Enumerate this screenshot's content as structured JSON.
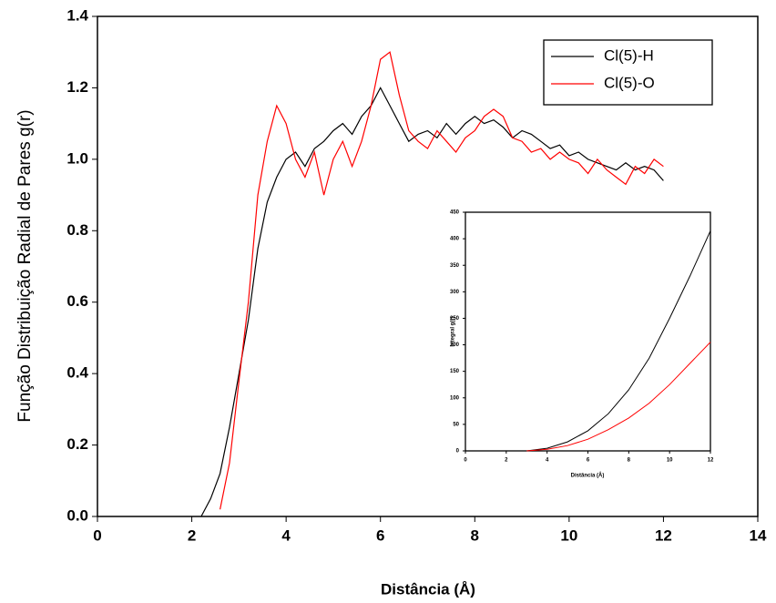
{
  "chart_data": [
    {
      "type": "line",
      "x_label": "Distância (Å)",
      "y_label": "Função Distribuição Radial de Pares g(r)",
      "x": [
        2.2,
        2.4,
        2.6,
        2.8,
        3.0,
        3.2,
        3.4,
        3.6,
        3.8,
        4.0,
        4.2,
        4.4,
        4.6,
        4.8,
        5.0,
        5.2,
        5.4,
        5.6,
        5.8,
        6.0,
        6.2,
        6.4,
        6.6,
        6.8,
        7.0,
        7.2,
        7.4,
        7.6,
        7.8,
        8.0,
        8.2,
        8.4,
        8.6,
        8.8,
        9.0,
        9.2,
        9.4,
        9.6,
        9.8,
        10.0,
        10.2,
        10.4,
        10.6,
        10.8,
        11.0,
        11.2,
        11.4,
        11.6,
        11.8,
        12.0
      ],
      "series": [
        {
          "name": "Cl(5)-H",
          "color": "#000000",
          "values": [
            0.0,
            0.05,
            0.12,
            0.25,
            0.4,
            0.55,
            0.75,
            0.88,
            0.95,
            1.0,
            1.02,
            0.98,
            1.03,
            1.05,
            1.08,
            1.1,
            1.07,
            1.12,
            1.15,
            1.2,
            1.15,
            1.1,
            1.05,
            1.07,
            1.08,
            1.06,
            1.1,
            1.07,
            1.1,
            1.12,
            1.1,
            1.11,
            1.09,
            1.06,
            1.08,
            1.07,
            1.05,
            1.03,
            1.04,
            1.01,
            1.02,
            1.0,
            0.99,
            0.98,
            0.97,
            0.99,
            0.97,
            0.98,
            0.97,
            0.94
          ]
        },
        {
          "name": "Cl(5)-O",
          "color": "#ff0000",
          "values": [
            null,
            null,
            0.02,
            0.15,
            0.38,
            0.6,
            0.9,
            1.05,
            1.15,
            1.1,
            1.0,
            0.95,
            1.02,
            0.9,
            1.0,
            1.05,
            0.98,
            1.05,
            1.15,
            1.28,
            1.3,
            1.18,
            1.08,
            1.05,
            1.03,
            1.08,
            1.05,
            1.02,
            1.06,
            1.08,
            1.12,
            1.14,
            1.12,
            1.06,
            1.05,
            1.02,
            1.03,
            1.0,
            1.02,
            1.0,
            0.99,
            0.96,
            1.0,
            0.97,
            0.95,
            0.93,
            0.98,
            0.96,
            1.0,
            0.98
          ]
        }
      ],
      "xlim": [
        0,
        14
      ],
      "xticks": [
        0,
        2,
        4,
        6,
        8,
        10,
        12,
        14
      ],
      "ylim": [
        0,
        1.4
      ],
      "yticks": [
        {
          "value": 0,
          "label": "0.0"
        },
        0.2,
        0.4,
        0.6,
        0.8,
        {
          "value": 1,
          "label": "1.0"
        },
        1.2,
        1.4
      ],
      "legend": "upper right"
    },
    {
      "type": "line",
      "x_label": "Distância (Å)",
      "y_label": "Integral g(r)",
      "x": [
        3,
        4,
        5,
        6,
        7,
        8,
        9,
        10,
        11,
        12
      ],
      "series": [
        {
          "color": "#000000",
          "values": [
            0,
            5,
            17,
            38,
            70,
            115,
            175,
            250,
            330,
            415
          ]
        },
        {
          "color": "#ff0000",
          "values": [
            0,
            3,
            10,
            22,
            40,
            62,
            90,
            125,
            165,
            205
          ]
        }
      ],
      "xlim": [
        0,
        12
      ],
      "xticks": [
        0,
        2,
        4,
        6,
        8,
        10,
        12
      ],
      "ylim": [
        0,
        450
      ],
      "yticks": [
        0,
        50,
        100,
        150,
        200,
        250,
        300,
        350,
        400,
        450
      ]
    }
  ]
}
